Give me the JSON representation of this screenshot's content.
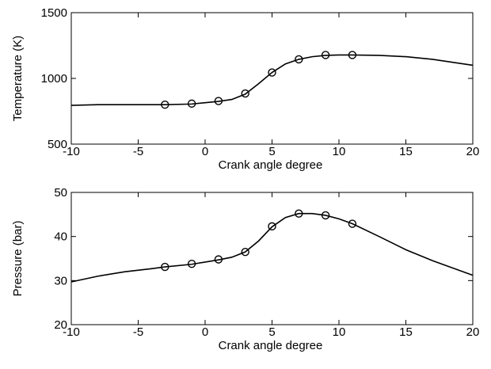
{
  "chart_data": [
    {
      "type": "line",
      "xlabel": "Crank angle degree",
      "ylabel": "Temperature (K)",
      "color": "#000000",
      "x": [
        -10,
        -8,
        -5,
        -3,
        -1,
        1,
        2,
        3,
        4,
        5,
        6,
        7,
        8,
        9,
        10,
        11,
        13,
        15,
        17,
        20
      ],
      "values": [
        795,
        800,
        800,
        800,
        805,
        825,
        840,
        880,
        960,
        1045,
        1110,
        1145,
        1165,
        1175,
        1178,
        1178,
        1175,
        1165,
        1145,
        1100
      ],
      "marker_x": [
        -3,
        -1,
        1,
        3,
        5,
        7,
        9,
        11
      ],
      "marker_values": [
        800,
        808,
        828,
        885,
        1045,
        1145,
        1178,
        1178
      ],
      "xlim": [
        -10,
        20
      ],
      "xticks": [
        -10,
        -5,
        0,
        5,
        10,
        15,
        20
      ],
      "ylim": [
        500,
        1500
      ],
      "yticks": [
        500,
        1000,
        1500
      ]
    },
    {
      "type": "line",
      "xlabel": "Crank angle degree",
      "ylabel": "Pressure (bar)",
      "color": "#000000",
      "x": [
        -10,
        -8,
        -6,
        -4,
        -3,
        -1,
        1,
        2,
        3,
        4,
        5,
        6,
        7,
        8,
        9,
        10,
        11,
        13,
        15,
        17,
        20
      ],
      "values": [
        29.7,
        31,
        32,
        32.7,
        33.1,
        33.7,
        34.7,
        35.3,
        36.5,
        39,
        42.2,
        44.3,
        45.2,
        45.2,
        44.8,
        44,
        42.9,
        40,
        37,
        34.5,
        31.2
      ],
      "marker_x": [
        -3,
        -1,
        1,
        3,
        5,
        7,
        9,
        11
      ],
      "marker_values": [
        33.1,
        33.8,
        34.8,
        36.5,
        42.3,
        45.2,
        44.8,
        42.9
      ],
      "xlim": [
        -10,
        20
      ],
      "xticks": [
        -10,
        -5,
        0,
        5,
        10,
        15,
        20
      ],
      "ylim": [
        20,
        50
      ],
      "yticks": [
        20,
        30,
        40,
        50
      ]
    }
  ]
}
